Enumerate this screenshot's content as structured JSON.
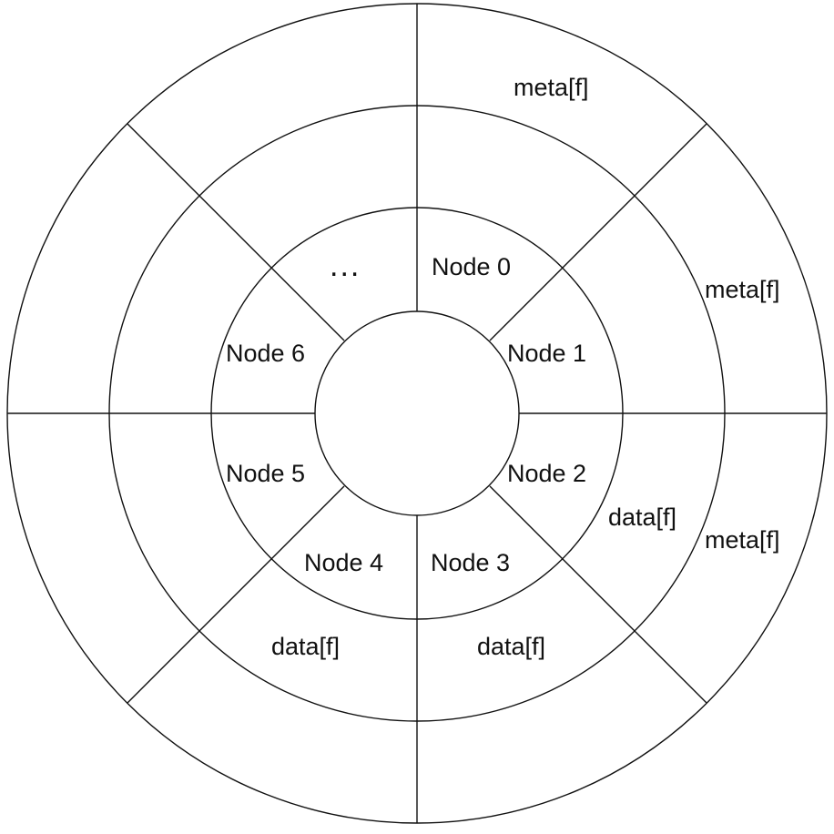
{
  "diagram": {
    "line_color": "#111111",
    "nodes": [
      "Node 0",
      "Node 1",
      "Node 2",
      "Node 3",
      "Node 4",
      "Node 5",
      "Node 6",
      "..."
    ],
    "meta_labels": [
      "meta[f]",
      "meta[f]",
      "meta[f]"
    ],
    "data_labels": [
      "data[f]",
      "data[f]",
      "data[f]"
    ]
  }
}
